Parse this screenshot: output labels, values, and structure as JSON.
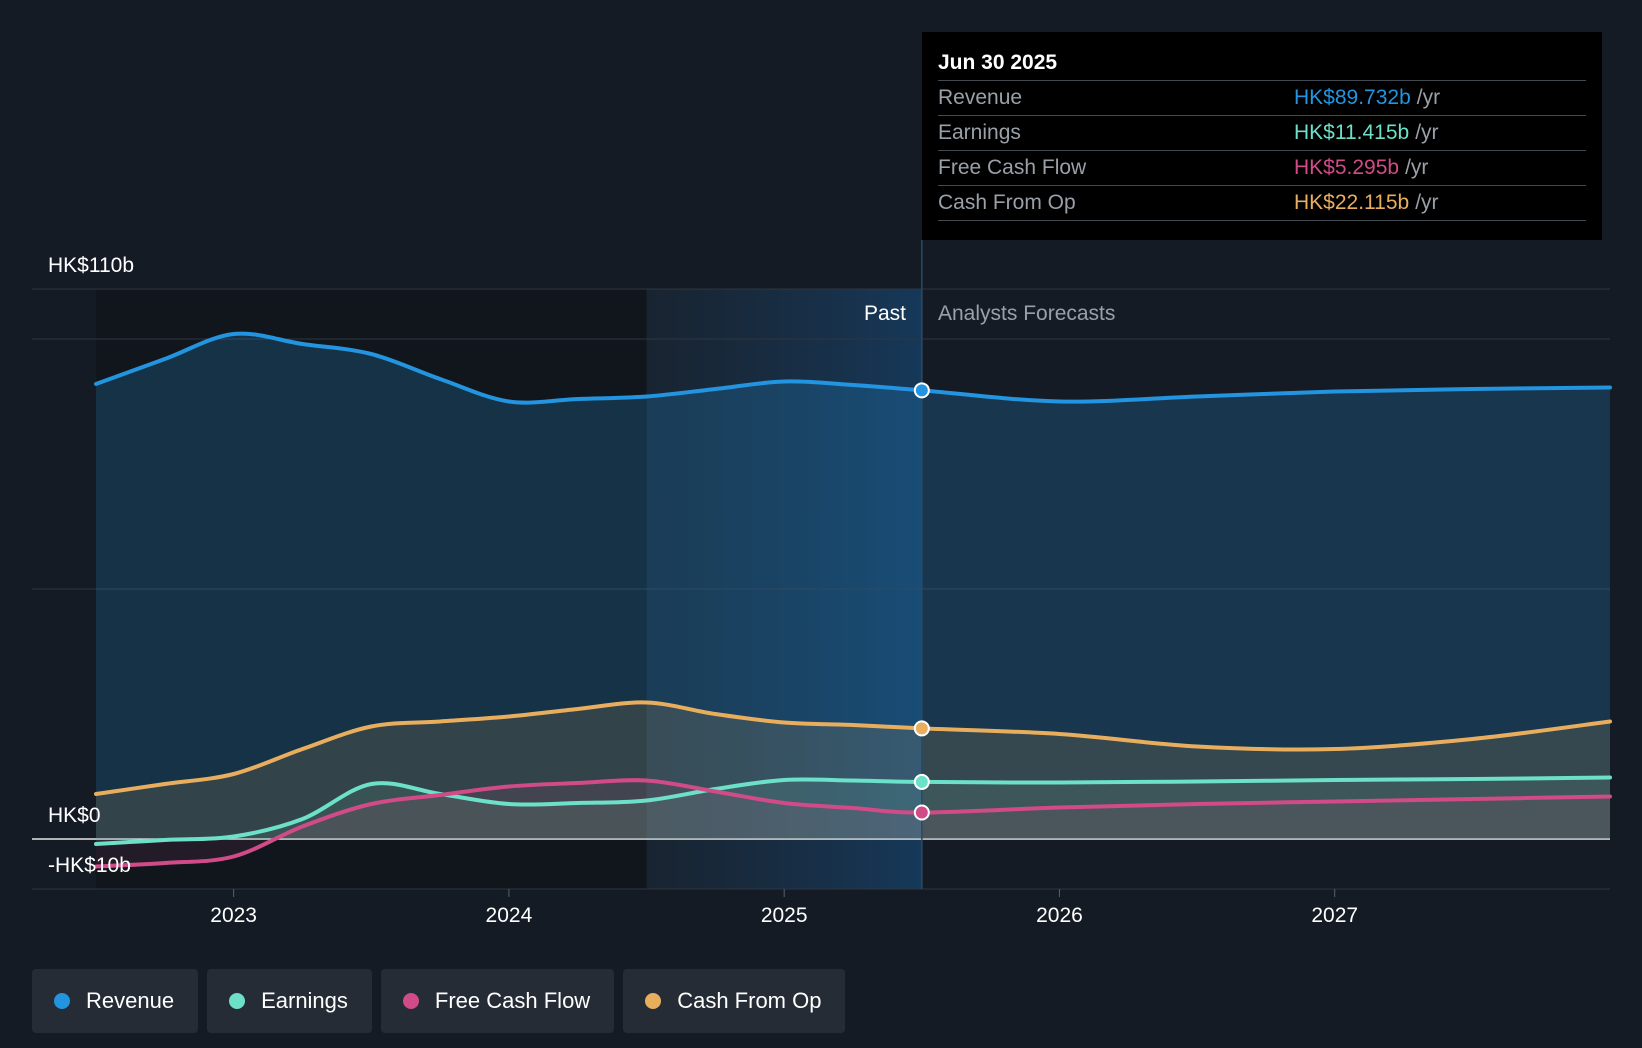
{
  "chart_data": {
    "type": "area",
    "y_axis": {
      "range": [
        -10,
        110
      ],
      "unit": "HK$ billions",
      "labels": {
        "top": "HK$110b",
        "zero": "HK$0",
        "bottom": "-HK$10b"
      }
    },
    "x_axis": {
      "range": [
        2022.5,
        2028.0
      ],
      "tick_labels": [
        "2023",
        "2024",
        "2025",
        "2026",
        "2027"
      ],
      "tick_values": [
        2023,
        2024,
        2025,
        2026,
        2027
      ]
    },
    "regions": {
      "past_label": "Past",
      "forecast_label": "Analysts Forecasts",
      "past_end": 2025.5,
      "highlight_start": 2024.5
    },
    "series": [
      {
        "name": "Revenue",
        "color": "#2394df",
        "points": [
          [
            2022.5,
            91
          ],
          [
            2022.75,
            96
          ],
          [
            2023.0,
            101
          ],
          [
            2023.25,
            99
          ],
          [
            2023.5,
            97
          ],
          [
            2023.75,
            92
          ],
          [
            2024.0,
            87.5
          ],
          [
            2024.25,
            88
          ],
          [
            2024.5,
            88.5
          ],
          [
            2024.75,
            90
          ],
          [
            2025.0,
            91.5
          ],
          [
            2025.25,
            90.8
          ],
          [
            2025.5,
            89.732
          ],
          [
            2026.0,
            87.5
          ],
          [
            2026.5,
            88.5
          ],
          [
            2027.0,
            89.5
          ],
          [
            2027.5,
            90
          ],
          [
            2028.0,
            90.3
          ]
        ]
      },
      {
        "name": "Earnings",
        "color": "#6ce0c8",
        "points": [
          [
            2022.5,
            -1
          ],
          [
            2022.75,
            -0.2
          ],
          [
            2023.0,
            0.5
          ],
          [
            2023.25,
            4
          ],
          [
            2023.5,
            11
          ],
          [
            2023.75,
            9
          ],
          [
            2024.0,
            7
          ],
          [
            2024.25,
            7.2
          ],
          [
            2024.5,
            7.7
          ],
          [
            2024.75,
            10
          ],
          [
            2025.0,
            11.8
          ],
          [
            2025.25,
            11.7
          ],
          [
            2025.5,
            11.415
          ],
          [
            2026.0,
            11.3
          ],
          [
            2026.5,
            11.5
          ],
          [
            2027.0,
            11.8
          ],
          [
            2027.5,
            12.0
          ],
          [
            2028.0,
            12.3
          ]
        ]
      },
      {
        "name": "Free Cash Flow",
        "color": "#d04b87",
        "points": [
          [
            2022.5,
            -5.5
          ],
          [
            2022.75,
            -4.8
          ],
          [
            2023.0,
            -3.5
          ],
          [
            2023.25,
            2.5
          ],
          [
            2023.5,
            7.0
          ],
          [
            2023.75,
            8.8
          ],
          [
            2024.0,
            10.5
          ],
          [
            2024.25,
            11.2
          ],
          [
            2024.5,
            11.7
          ],
          [
            2024.75,
            9.5
          ],
          [
            2025.0,
            7.2
          ],
          [
            2025.25,
            6.2
          ],
          [
            2025.5,
            5.295
          ],
          [
            2026.0,
            6.3
          ],
          [
            2026.5,
            7.0
          ],
          [
            2027.0,
            7.5
          ],
          [
            2027.5,
            8.0
          ],
          [
            2028.0,
            8.5
          ]
        ]
      },
      {
        "name": "Cash From Op",
        "color": "#e8ae5e",
        "points": [
          [
            2022.5,
            9
          ],
          [
            2022.75,
            11
          ],
          [
            2023.0,
            13
          ],
          [
            2023.25,
            18
          ],
          [
            2023.5,
            22.5
          ],
          [
            2023.75,
            23.5
          ],
          [
            2024.0,
            24.5
          ],
          [
            2024.25,
            26
          ],
          [
            2024.5,
            27.3
          ],
          [
            2024.75,
            25
          ],
          [
            2025.0,
            23.3
          ],
          [
            2025.25,
            22.8
          ],
          [
            2025.5,
            22.115
          ],
          [
            2026.0,
            21
          ],
          [
            2026.5,
            18.5
          ],
          [
            2027.0,
            18
          ],
          [
            2027.5,
            20
          ],
          [
            2028.0,
            23.5
          ]
        ]
      }
    ],
    "tooltip": {
      "date": "Jun 30 2025",
      "unit": "/yr",
      "rows": [
        {
          "label": "Revenue",
          "value": "HK$89.732b"
        },
        {
          "label": "Earnings",
          "value": "HK$11.415b"
        },
        {
          "label": "Free Cash Flow",
          "value": "HK$5.295b"
        },
        {
          "label": "Cash From Op",
          "value": "HK$22.115b"
        }
      ]
    },
    "legend": [
      "Revenue",
      "Earnings",
      "Free Cash Flow",
      "Cash From Op"
    ]
  },
  "colors": {
    "background": "#151b24",
    "revenue": "#2394df",
    "earnings": "#6ce0c8",
    "fcf": "#d04b87",
    "cfo": "#e8ae5e"
  }
}
